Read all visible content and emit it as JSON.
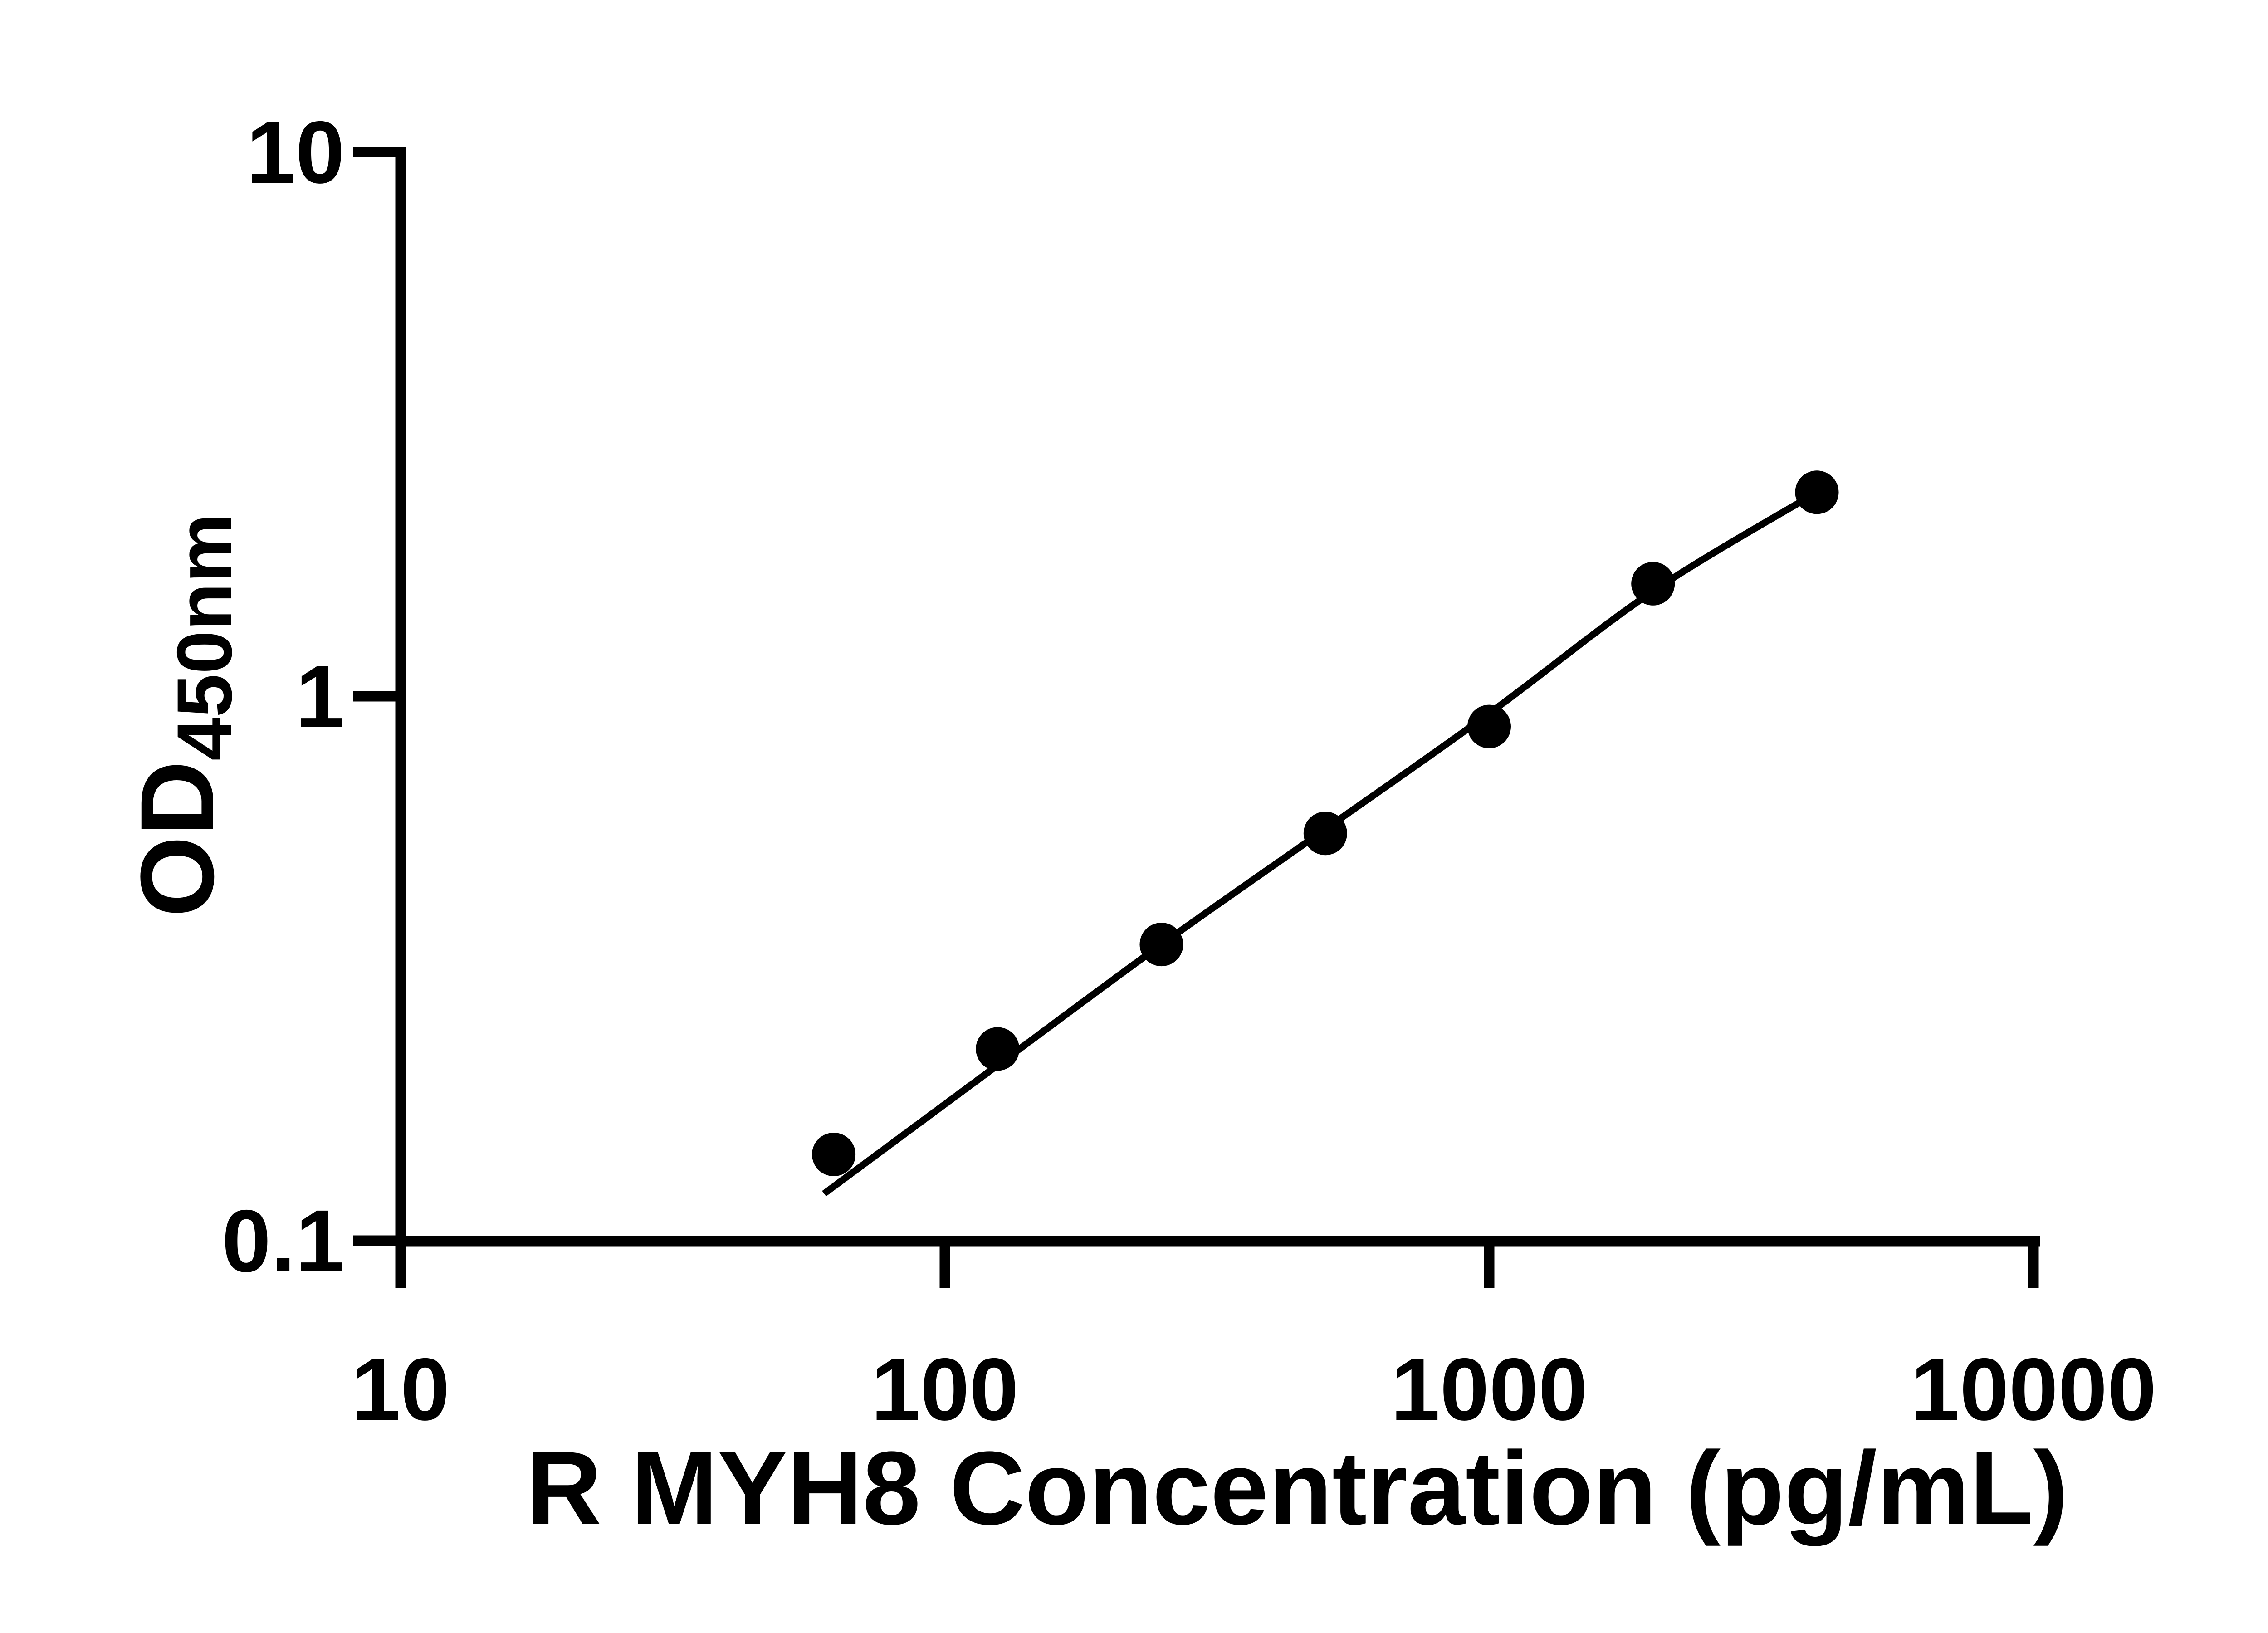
{
  "page": {
    "background": "#ffffff",
    "foreground": "#000000"
  },
  "chart_data": {
    "type": "scatter",
    "title": "",
    "xlabel": "R MYH8 Concentration (pg/mL)",
    "ylabel_main": "OD",
    "ylabel_sub": "450nm",
    "x_scale": "log10",
    "y_scale": "log10",
    "xlim": [
      10,
      10000
    ],
    "ylim": [
      0.1,
      10
    ],
    "grid": false,
    "legend": false,
    "marker": {
      "shape": "circle",
      "color": "#000000"
    },
    "line_color": "#000000",
    "x_ticks": [
      {
        "value": 10,
        "label": "10"
      },
      {
        "value": 100,
        "label": "100"
      },
      {
        "value": 1000,
        "label": "1000"
      },
      {
        "value": 10000,
        "label": "10000"
      }
    ],
    "y_ticks": [
      {
        "value": 10,
        "label": "10"
      },
      {
        "value": 1,
        "label": "1"
      },
      {
        "value": 0.1,
        "label": "0.1"
      }
    ],
    "points": [
      {
        "x": 62.5,
        "y": 0.144
      },
      {
        "x": 125,
        "y": 0.225
      },
      {
        "x": 250,
        "y": 0.35
      },
      {
        "x": 500,
        "y": 0.56
      },
      {
        "x": 1000,
        "y": 0.88
      },
      {
        "x": 2000,
        "y": 1.61
      },
      {
        "x": 4000,
        "y": 2.37
      }
    ],
    "fit_curve": [
      {
        "x": 60,
        "y": 0.122
      },
      {
        "x": 125,
        "y": 0.21
      },
      {
        "x": 250,
        "y": 0.35
      },
      {
        "x": 500,
        "y": 0.57
      },
      {
        "x": 1000,
        "y": 0.93
      },
      {
        "x": 2000,
        "y": 1.56
      },
      {
        "x": 4000,
        "y": 2.37
      }
    ]
  }
}
